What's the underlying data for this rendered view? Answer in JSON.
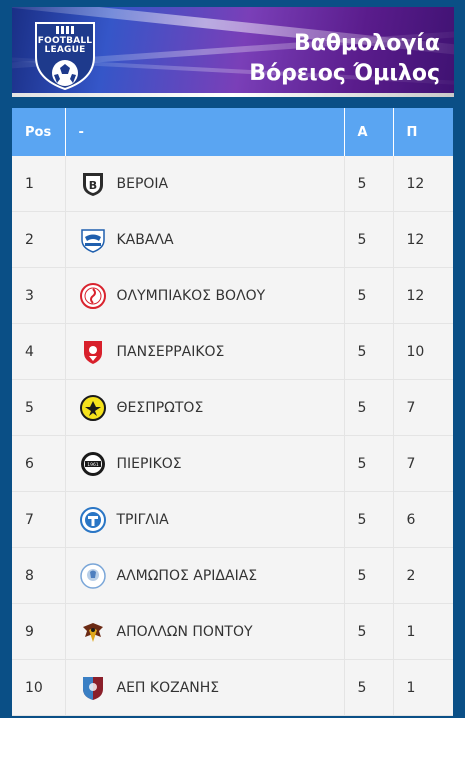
{
  "header": {
    "logo_text_line1": "FOOTBALL",
    "logo_text_line2": "LEAGUE",
    "title_line1": "Βαθμολογία",
    "title_line2": "Βόρειος Όμιλος"
  },
  "colors": {
    "frame": "#0a4f86",
    "header_row": "#5aa5f2",
    "row_bg": "#f4f4f4"
  },
  "table": {
    "columns": [
      "Pos",
      "-",
      "A",
      "Π"
    ],
    "rows": [
      {
        "pos": "1",
        "team": "ΒΕΡΟΙΑ",
        "a": "5",
        "p": "12",
        "badge": "veria-crest-icon"
      },
      {
        "pos": "2",
        "team": "ΚΑΒΑΛΑ",
        "a": "5",
        "p": "12",
        "badge": "kavala-crest-icon"
      },
      {
        "pos": "3",
        "team": "ΟΛΥΜΠΙΑΚΟΣ ΒΟΛΟΥ",
        "a": "5",
        "p": "12",
        "badge": "olympiakos-volou-crest-icon"
      },
      {
        "pos": "4",
        "team": "ΠΑΝΣΕΡΡΑΙΚΟΣ",
        "a": "5",
        "p": "10",
        "badge": "panserraikos-crest-icon"
      },
      {
        "pos": "5",
        "team": "ΘΕΣΠΡΩΤΟΣ",
        "a": "5",
        "p": "7",
        "badge": "thesprotos-crest-icon"
      },
      {
        "pos": "6",
        "team": "ΠΙΕΡΙΚΟΣ",
        "a": "5",
        "p": "7",
        "badge": "pierikos-crest-icon"
      },
      {
        "pos": "7",
        "team": "ΤΡΙΓΛΙΑ",
        "a": "5",
        "p": "6",
        "badge": "triglia-crest-icon"
      },
      {
        "pos": "8",
        "team": "ΑΛΜΩΠΟΣ ΑΡΙΔΑΙΑΣ",
        "a": "5",
        "p": "2",
        "badge": "almopos-crest-icon"
      },
      {
        "pos": "9",
        "team": "ΑΠΟΛΛΩΝ ΠΟΝΤΟΥ",
        "a": "5",
        "p": "1",
        "badge": "apollon-pontou-crest-icon"
      },
      {
        "pos": "10",
        "team": "ΑΕΠ ΚΟΖΑΝΗΣ",
        "a": "5",
        "p": "1",
        "badge": "aep-kozanis-crest-icon"
      }
    ]
  }
}
